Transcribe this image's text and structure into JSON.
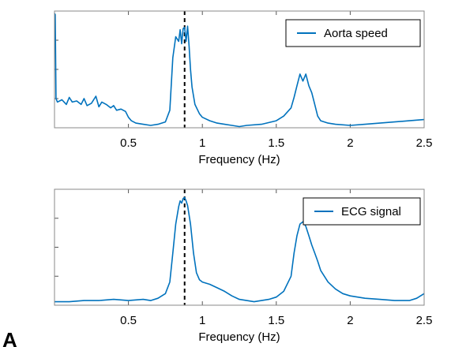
{
  "figure": {
    "panel_label": "A"
  },
  "chart_data": [
    {
      "type": "line",
      "xlabel": "Frequency (Hz)",
      "ylabel": "",
      "xlim": [
        0,
        2.5
      ],
      "ylim": [
        0,
        1
      ],
      "xticks": [
        0.5,
        1,
        1.5,
        2,
        2.5
      ],
      "xtick_labels": [
        "0.5",
        "1",
        "1.5",
        "2",
        "2.5"
      ],
      "grid": false,
      "legend_position": "top-right",
      "marker_line": {
        "x": 0.88,
        "style": "dashed"
      },
      "series": [
        {
          "name": "Aorta speed",
          "color": "#0072bd",
          "x": [
            0,
            0.005,
            0.01,
            0.02,
            0.05,
            0.08,
            0.1,
            0.12,
            0.15,
            0.18,
            0.2,
            0.22,
            0.25,
            0.28,
            0.3,
            0.32,
            0.35,
            0.38,
            0.4,
            0.42,
            0.45,
            0.48,
            0.5,
            0.52,
            0.55,
            0.6,
            0.65,
            0.7,
            0.75,
            0.78,
            0.8,
            0.82,
            0.84,
            0.85,
            0.86,
            0.87,
            0.88,
            0.89,
            0.9,
            0.91,
            0.92,
            0.93,
            0.95,
            0.98,
            1.0,
            1.05,
            1.1,
            1.15,
            1.2,
            1.25,
            1.3,
            1.4,
            1.5,
            1.55,
            1.6,
            1.62,
            1.64,
            1.66,
            1.68,
            1.7,
            1.72,
            1.74,
            1.76,
            1.78,
            1.8,
            1.85,
            1.9,
            2.0,
            2.1,
            2.2,
            2.3,
            2.4,
            2.5
          ],
          "y": [
            0.98,
            0.97,
            0.25,
            0.22,
            0.24,
            0.2,
            0.26,
            0.22,
            0.23,
            0.2,
            0.25,
            0.19,
            0.21,
            0.27,
            0.18,
            0.22,
            0.2,
            0.17,
            0.19,
            0.15,
            0.16,
            0.14,
            0.09,
            0.06,
            0.04,
            0.03,
            0.02,
            0.03,
            0.05,
            0.15,
            0.6,
            0.78,
            0.74,
            0.84,
            0.72,
            0.85,
            0.86,
            0.74,
            0.87,
            0.7,
            0.5,
            0.35,
            0.2,
            0.12,
            0.09,
            0.06,
            0.04,
            0.03,
            0.02,
            0.01,
            0.02,
            0.03,
            0.06,
            0.1,
            0.17,
            0.26,
            0.36,
            0.46,
            0.4,
            0.46,
            0.36,
            0.3,
            0.2,
            0.1,
            0.06,
            0.04,
            0.03,
            0.02,
            0.03,
            0.04,
            0.05,
            0.06,
            0.07
          ]
        },
        {
          "name": "ECG signal",
          "color": "#0072bd",
          "x": [
            0,
            0.1,
            0.2,
            0.3,
            0.4,
            0.5,
            0.6,
            0.65,
            0.7,
            0.75,
            0.78,
            0.8,
            0.82,
            0.84,
            0.85,
            0.86,
            0.87,
            0.88,
            0.89,
            0.9,
            0.92,
            0.94,
            0.96,
            0.98,
            1.0,
            1.05,
            1.1,
            1.15,
            1.2,
            1.25,
            1.3,
            1.35,
            1.4,
            1.45,
            1.5,
            1.55,
            1.6,
            1.62,
            1.64,
            1.66,
            1.68,
            1.7,
            1.72,
            1.74,
            1.76,
            1.78,
            1.8,
            1.85,
            1.9,
            1.95,
            2.0,
            2.05,
            2.1,
            2.2,
            2.3,
            2.4,
            2.45,
            2.5
          ],
          "y": [
            0.03,
            0.03,
            0.04,
            0.04,
            0.05,
            0.04,
            0.05,
            0.04,
            0.06,
            0.1,
            0.2,
            0.45,
            0.7,
            0.85,
            0.9,
            0.88,
            0.92,
            0.93,
            0.9,
            0.86,
            0.7,
            0.45,
            0.28,
            0.22,
            0.2,
            0.18,
            0.15,
            0.12,
            0.08,
            0.05,
            0.04,
            0.03,
            0.04,
            0.05,
            0.07,
            0.12,
            0.25,
            0.45,
            0.6,
            0.7,
            0.72,
            0.68,
            0.6,
            0.52,
            0.45,
            0.38,
            0.3,
            0.2,
            0.14,
            0.1,
            0.08,
            0.07,
            0.06,
            0.05,
            0.04,
            0.04,
            0.06,
            0.1
          ]
        }
      ]
    }
  ]
}
